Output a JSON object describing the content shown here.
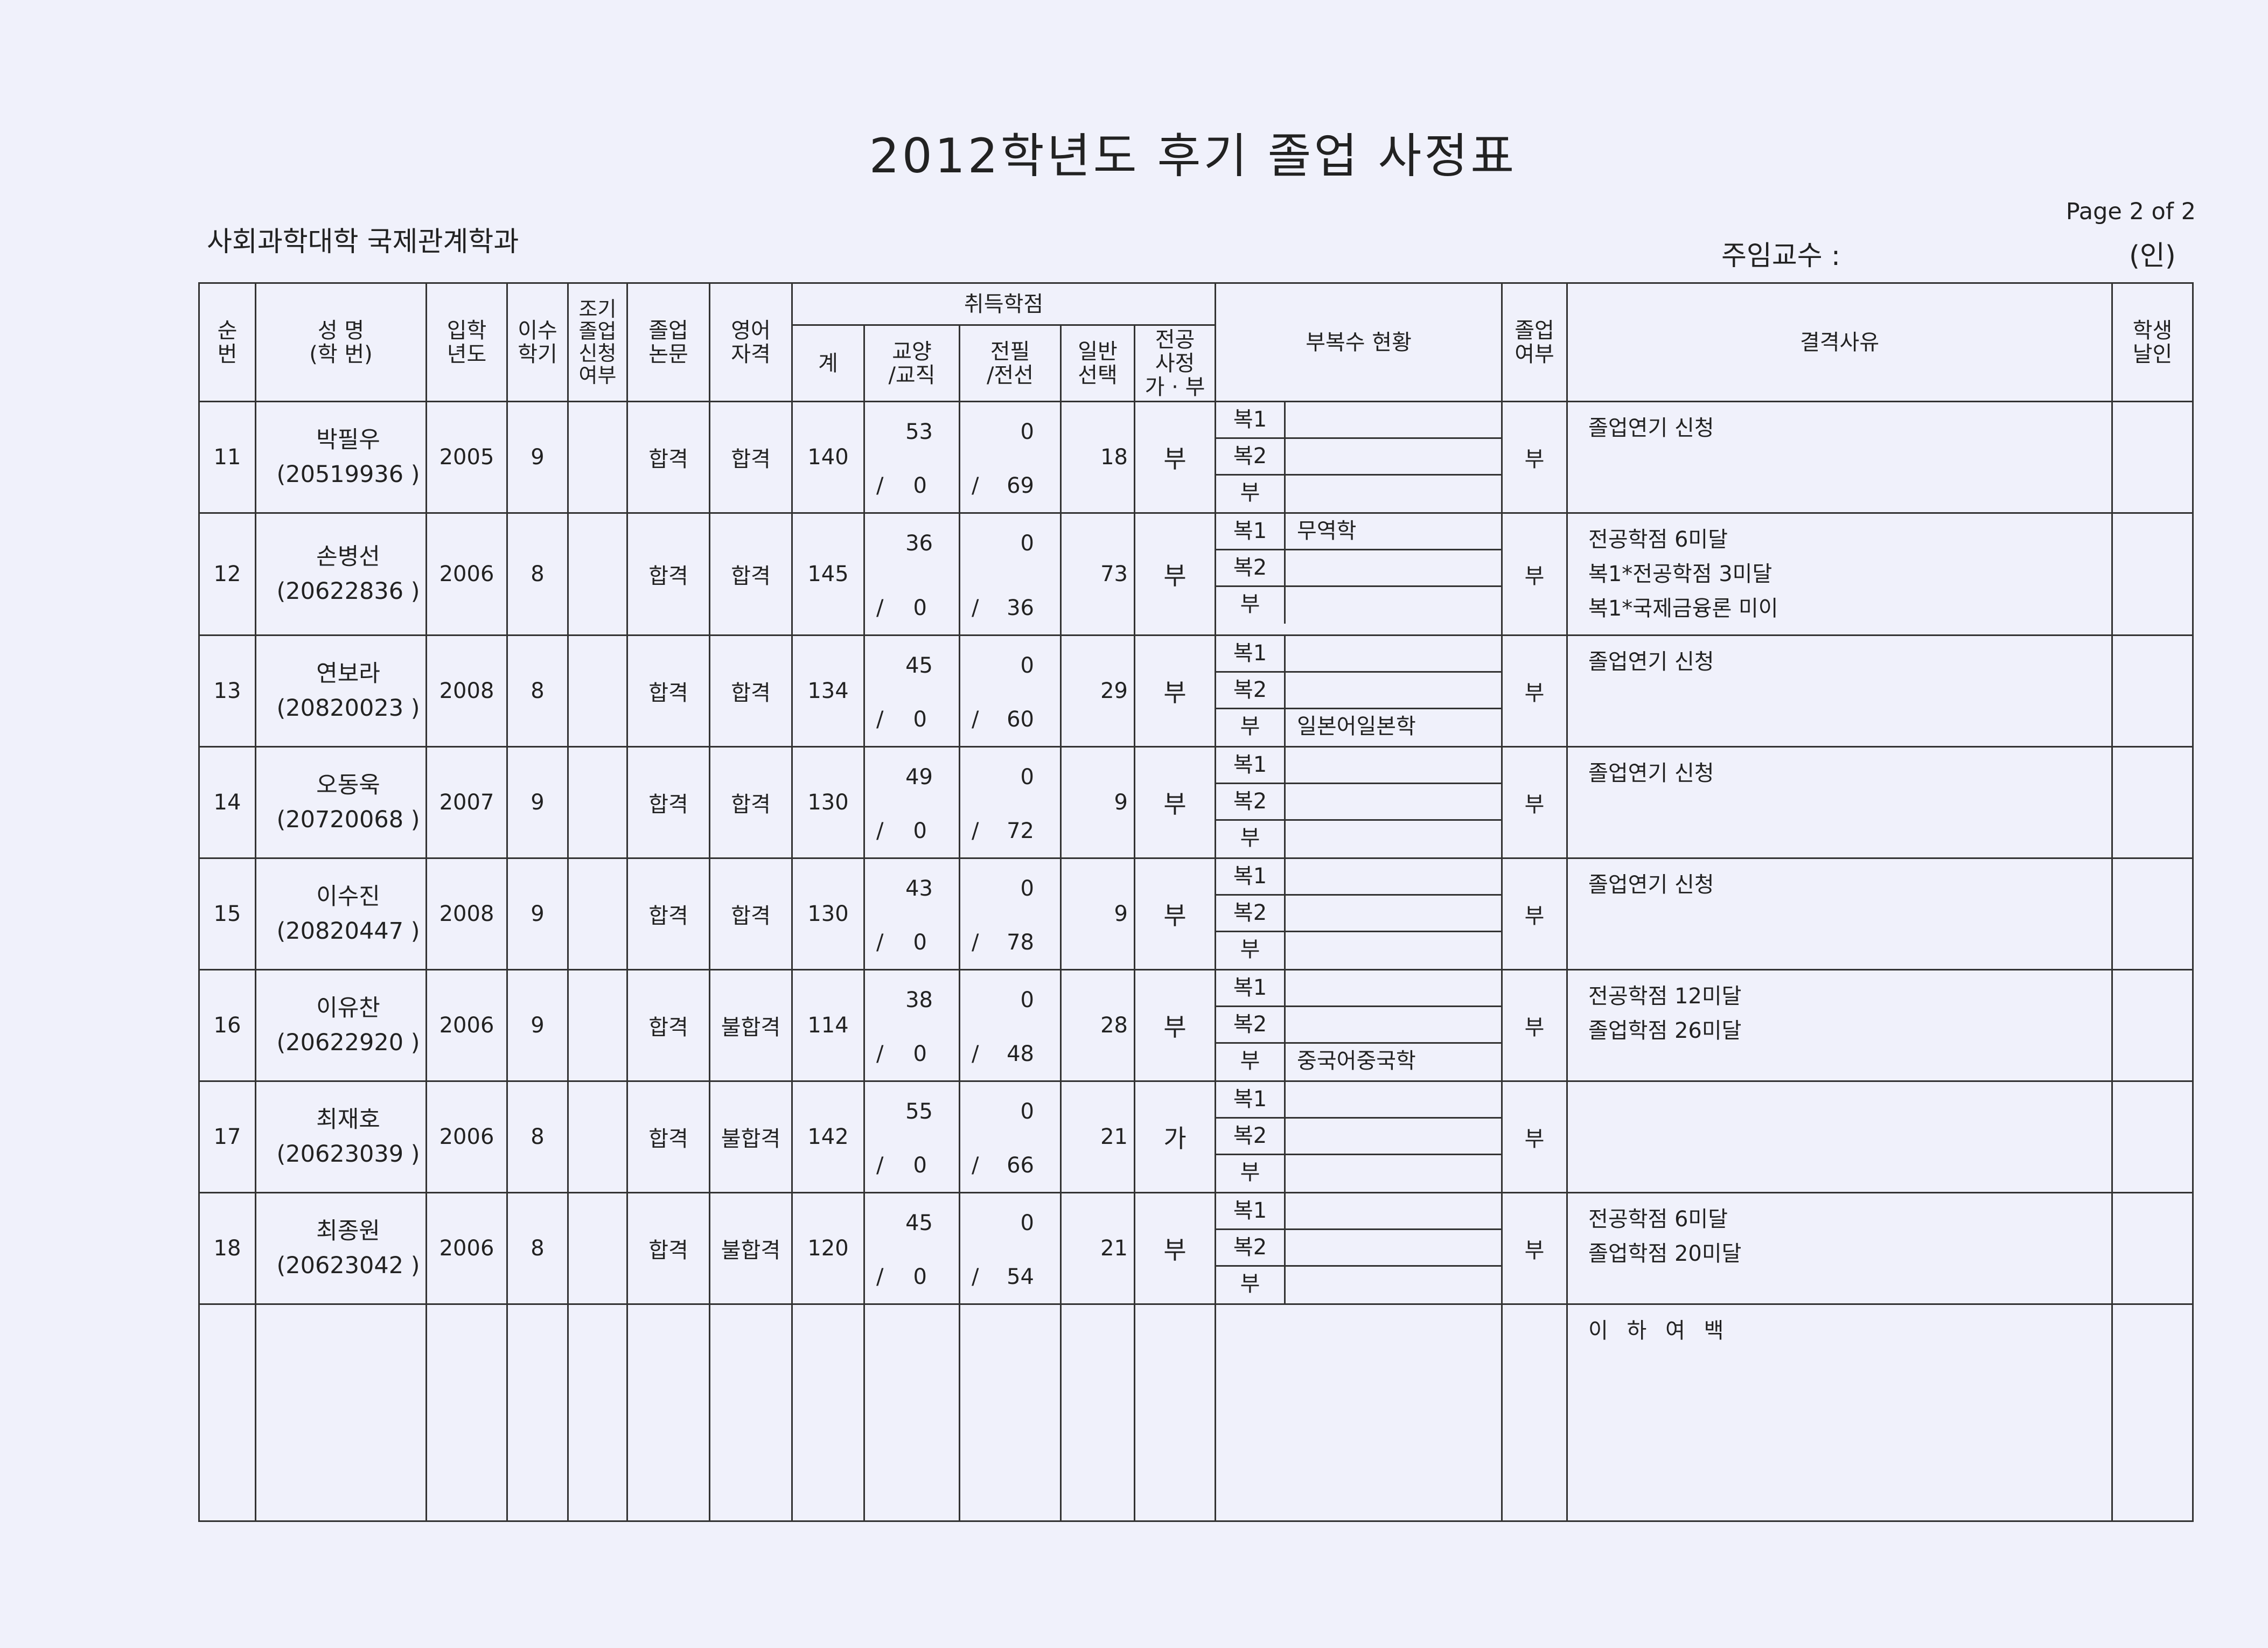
{
  "title": "2012학년도 후기  졸업 사정표",
  "page_label": "Page 2 of 2",
  "department": "사회과학대학   국제관계학과",
  "professor_label": "주임교수 :",
  "seal_label": "(인)",
  "headers": {
    "no": "순\n번",
    "name": "성  명\n(학  번)",
    "entry_year": "입학\n년도",
    "semesters": "이수\n학기",
    "early": "조기\n졸업\n신청\n여부",
    "thesis": "졸업\n논문",
    "english": "영어\n자격",
    "credits": "취득학점",
    "total": "계",
    "liberal": "교양\n/교직",
    "major": "전필\n/전선",
    "general": "일반\n선택",
    "major_review": "전공\n사정",
    "major_review_sub": "가 · 부",
    "minor": "부복수 현황",
    "graduate": "졸업\n여부",
    "reason": "결격사유",
    "seal": "학생\n날인"
  },
  "rows": [
    {
      "no": "11",
      "name": "박필우",
      "id": "(20519936  )",
      "year": "2005",
      "sem": "9",
      "early": "",
      "thesis": "합격",
      "eng": "합격",
      "total": "140",
      "lib": "53",
      "lib2": "0",
      "maj": "0",
      "maj2": "69",
      "gen": "18",
      "review": "부",
      "minor": [
        [
          "복1",
          ""
        ],
        [
          "복2",
          ""
        ],
        [
          "부",
          ""
        ]
      ],
      "grad": "부",
      "reason": [
        "졸업연기 신청"
      ]
    },
    {
      "no": "12",
      "name": "손병선",
      "id": "(20622836  )",
      "year": "2006",
      "sem": "8",
      "early": "",
      "thesis": "합격",
      "eng": "합격",
      "total": "145",
      "lib": "36",
      "lib2": "0",
      "maj": "0",
      "maj2": "36",
      "gen": "73",
      "review": "부",
      "minor": [
        [
          "복1",
          "무역학"
        ],
        [
          "복2",
          ""
        ],
        [
          "부",
          ""
        ]
      ],
      "grad": "부",
      "reason": [
        "전공학점 6미달",
        "복1*전공학점 3미달",
        "복1*국제금융론 미이"
      ]
    },
    {
      "no": "13",
      "name": "연보라",
      "id": "(20820023  )",
      "year": "2008",
      "sem": "8",
      "early": "",
      "thesis": "합격",
      "eng": "합격",
      "total": "134",
      "lib": "45",
      "lib2": "0",
      "maj": "0",
      "maj2": "60",
      "gen": "29",
      "review": "부",
      "minor": [
        [
          "복1",
          ""
        ],
        [
          "복2",
          ""
        ],
        [
          "부",
          "일본어일본학"
        ]
      ],
      "grad": "부",
      "reason": [
        "졸업연기 신청"
      ]
    },
    {
      "no": "14",
      "name": "오동욱",
      "id": "(20720068  )",
      "year": "2007",
      "sem": "9",
      "early": "",
      "thesis": "합격",
      "eng": "합격",
      "total": "130",
      "lib": "49",
      "lib2": "0",
      "maj": "0",
      "maj2": "72",
      "gen": "9",
      "review": "부",
      "minor": [
        [
          "복1",
          ""
        ],
        [
          "복2",
          ""
        ],
        [
          "부",
          ""
        ]
      ],
      "grad": "부",
      "reason": [
        "졸업연기 신청"
      ]
    },
    {
      "no": "15",
      "name": "이수진",
      "id": "(20820447  )",
      "year": "2008",
      "sem": "9",
      "early": "",
      "thesis": "합격",
      "eng": "합격",
      "total": "130",
      "lib": "43",
      "lib2": "0",
      "maj": "0",
      "maj2": "78",
      "gen": "9",
      "review": "부",
      "minor": [
        [
          "복1",
          ""
        ],
        [
          "복2",
          ""
        ],
        [
          "부",
          ""
        ]
      ],
      "grad": "부",
      "reason": [
        "졸업연기 신청"
      ]
    },
    {
      "no": "16",
      "name": "이유찬",
      "id": "(20622920  )",
      "year": "2006",
      "sem": "9",
      "early": "",
      "thesis": "합격",
      "eng": "불합격",
      "total": "114",
      "lib": "38",
      "lib2": "0",
      "maj": "0",
      "maj2": "48",
      "gen": "28",
      "review": "부",
      "minor": [
        [
          "복1",
          ""
        ],
        [
          "복2",
          ""
        ],
        [
          "부",
          "중국어중국학"
        ]
      ],
      "grad": "부",
      "reason": [
        "전공학점 12미달",
        "졸업학점 26미달"
      ]
    },
    {
      "no": "17",
      "name": "최재호",
      "id": "(20623039  )",
      "year": "2006",
      "sem": "8",
      "early": "",
      "thesis": "합격",
      "eng": "불합격",
      "total": "142",
      "lib": "55",
      "lib2": "0",
      "maj": "0",
      "maj2": "66",
      "gen": "21",
      "review": "가",
      "minor": [
        [
          "복1",
          ""
        ],
        [
          "복2",
          ""
        ],
        [
          "부",
          ""
        ]
      ],
      "grad": "부",
      "reason": []
    },
    {
      "no": "18",
      "name": "최종원",
      "id": "(20623042  )",
      "year": "2006",
      "sem": "8",
      "early": "",
      "thesis": "합격",
      "eng": "불합격",
      "total": "120",
      "lib": "45",
      "lib2": "0",
      "maj": "0",
      "maj2": "54",
      "gen": "21",
      "review": "부",
      "minor": [
        [
          "복1",
          ""
        ],
        [
          "복2",
          ""
        ],
        [
          "부",
          ""
        ]
      ],
      "grad": "부",
      "reason": [
        "전공학점 6미달",
        "졸업학점 20미달"
      ]
    }
  ],
  "blank_note": "이 하 여 백"
}
